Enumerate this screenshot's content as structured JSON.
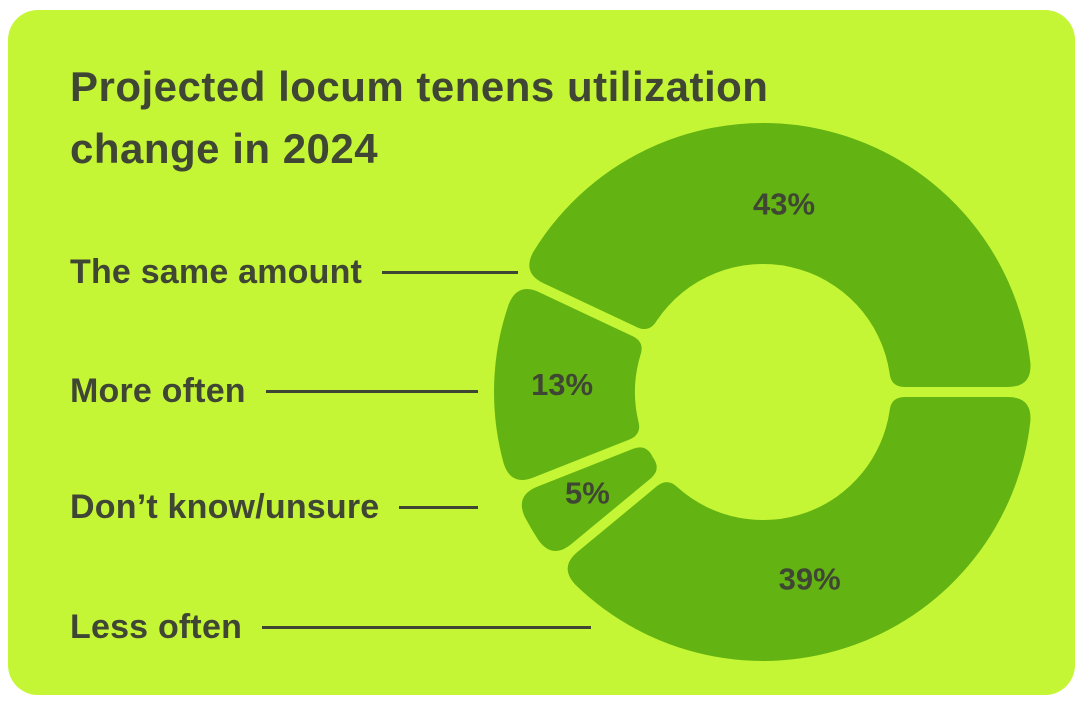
{
  "card": {
    "background": "#c5f636",
    "text_color": "#3f4634",
    "title": "Projected locum tenens utilization change in 2024",
    "title_lines": [
      "Projected locum tenens utilization",
      "change in 2024"
    ]
  },
  "chart_data": {
    "type": "pie",
    "subtype": "donut",
    "title": "Projected locum tenens utilization change in 2024",
    "categories": [
      "The same amount",
      "More often",
      "Don’t know/unsure",
      "Less often"
    ],
    "values": [
      43,
      13,
      5,
      39
    ],
    "labels": [
      "43%",
      "13%",
      "5%",
      "39%"
    ],
    "unit": "%",
    "start_angle_deg": 0,
    "direction": "counterclockwise",
    "legend_position": "left",
    "leader_lines": true,
    "colors": {
      "segment": "#63b412",
      "hole": "#c5f636",
      "value_labels": "#3f4634"
    }
  }
}
